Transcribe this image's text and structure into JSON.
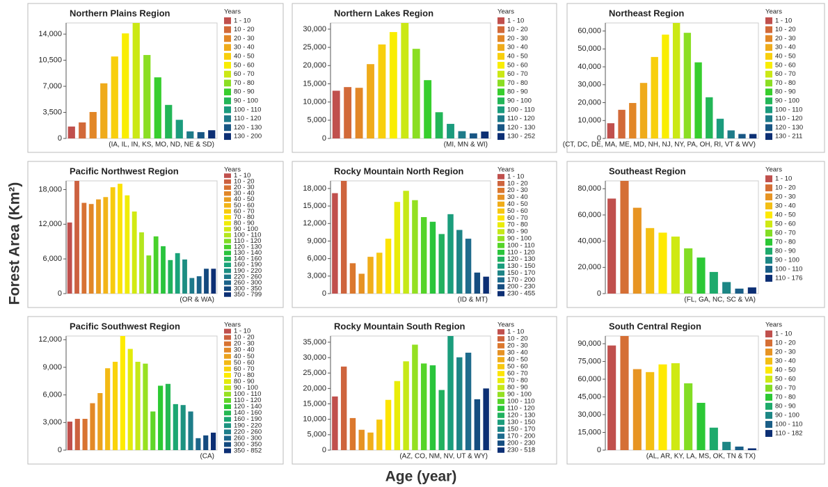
{
  "ylabel": "Forest Area (Km²)",
  "xlabel": "Age (year)",
  "color_scale": [
    "#c0504d",
    "#dd7a2c",
    "#f2b418",
    "#ffee00",
    "#b4e61e",
    "#2ecc2e",
    "#1aa37a",
    "#1f6f8e",
    "#0c2f74"
  ],
  "chart_data": [
    {
      "type": "bar",
      "title": "Northern Plains Region",
      "legend_title": "Years",
      "annotation": "(IA, IL, IN, KS, MO, ND, NE & SD)",
      "categories": [
        "1 - 10",
        "10 - 20",
        "20 - 30",
        "30 - 40",
        "40 - 50",
        "50 - 60",
        "60 - 70",
        "70 - 80",
        "80 - 90",
        "90 - 100",
        "100 - 110",
        "110 - 120",
        "120 - 130",
        "130 - 200"
      ],
      "values": [
        1600,
        2150,
        3550,
        7400,
        11000,
        14100,
        15500,
        11200,
        8200,
        4500,
        2500,
        950,
        850,
        1100
      ],
      "ylim": [
        0,
        15500
      ],
      "yticks": [
        0,
        {
          "value": 3500,
          "label": "3,500"
        },
        {
          "value": 7000,
          "label": "7,000"
        },
        {
          "value": 10500,
          "label": "10,500"
        },
        {
          "value": 14000,
          "label": "14,000"
        }
      ]
    },
    {
      "type": "bar",
      "title": "Northern Lakes Region",
      "legend_title": "Years",
      "annotation": "(MI, MN & WI)",
      "categories": [
        "1 - 10",
        "10 - 20",
        "20 - 30",
        "30 - 40",
        "40 - 50",
        "50 - 60",
        "60 - 70",
        "70 - 80",
        "80 - 90",
        "90 - 100",
        "100 - 110",
        "110 - 120",
        "120 - 130",
        "130 - 252"
      ],
      "values": [
        13100,
        14100,
        13900,
        20400,
        25800,
        29200,
        31700,
        24600,
        16000,
        7200,
        4000,
        2000,
        1400,
        1900
      ],
      "ylim": [
        0,
        31700
      ],
      "yticks": [
        0,
        {
          "value": 5000,
          "label": "5,000"
        },
        {
          "value": 10000,
          "label": "10,000"
        },
        {
          "value": 15000,
          "label": "15,000"
        },
        {
          "value": 20000,
          "label": "20,000"
        },
        {
          "value": 25000,
          "label": "25,000"
        },
        {
          "value": 30000,
          "label": "30,000"
        }
      ]
    },
    {
      "type": "bar",
      "title": "Northeast Region",
      "legend_title": "Years",
      "annotation": "(CT, DC, DE, MA, ME, MD, NH, NJ, NY, PA, OH, RI, VT & WV)",
      "categories": [
        "1 - 10",
        "10 - 20",
        "20 - 30",
        "30 - 40",
        "40 - 50",
        "50 - 60",
        "60 - 70",
        "70 - 80",
        "80 - 90",
        "90 - 100",
        "100 - 110",
        "110 - 120",
        "120 - 130",
        "130 - 211"
      ],
      "values": [
        8500,
        16000,
        19800,
        31000,
        45500,
        58000,
        64500,
        59000,
        42500,
        23000,
        11000,
        4500,
        2500,
        2500
      ],
      "ylim": [
        0,
        64500
      ],
      "yticks": [
        0,
        {
          "value": 10000,
          "label": "10,000"
        },
        {
          "value": 20000,
          "label": "20,000"
        },
        {
          "value": 30000,
          "label": "30,000"
        },
        {
          "value": 40000,
          "label": "40,000"
        },
        {
          "value": 50000,
          "label": "50,000"
        },
        {
          "value": 60000,
          "label": "60,000"
        }
      ]
    },
    {
      "type": "bar",
      "title": "Pacific Northwest Region",
      "legend_title": "Years",
      "annotation": "(OR & WA)",
      "categories": [
        "1 - 10",
        "10 - 20",
        "20 - 30",
        "30 - 40",
        "40 - 50",
        "50 - 60",
        "60 - 70",
        "70 - 80",
        "80 - 90",
        "90 - 100",
        "100 - 110",
        "110 - 120",
        "120 - 130",
        "130 - 140",
        "140 - 160",
        "160 - 190",
        "190 - 220",
        "220 - 260",
        "260 - 300",
        "300 - 350",
        "350 - 799"
      ],
      "values": [
        12300,
        19500,
        15700,
        15500,
        16300,
        16700,
        18400,
        19000,
        17000,
        14200,
        10600,
        6600,
        9900,
        8200,
        5800,
        7000,
        5900,
        2700,
        3000,
        4300,
        4300
      ],
      "ylim": [
        0,
        19500
      ],
      "yticks": [
        0,
        {
          "value": 6000,
          "label": "6,000"
        },
        {
          "value": 12000,
          "label": "12,000"
        },
        {
          "value": 18000,
          "label": "18,000"
        }
      ]
    },
    {
      "type": "bar",
      "title": "Rocky Mountain North Region",
      "legend_title": "Years",
      "annotation": "(ID & MT)",
      "categories": [
        "1 - 10",
        "10 - 20",
        "20 - 30",
        "30 - 40",
        "40 - 50",
        "50 - 60",
        "60 - 70",
        "70 - 80",
        "80 - 90",
        "90 - 100",
        "100 - 110",
        "110 - 120",
        "120 - 130",
        "130 - 150",
        "150 - 170",
        "170 - 200",
        "200 - 230",
        "230 - 455"
      ],
      "values": [
        17200,
        19300,
        5200,
        3400,
        6300,
        7000,
        9400,
        15700,
        17600,
        16000,
        13100,
        12300,
        10200,
        13600,
        10900,
        9400,
        3600,
        2900
      ],
      "ylim": [
        0,
        19300
      ],
      "yticks": [
        0,
        {
          "value": 3000,
          "label": "3,000"
        },
        {
          "value": 6000,
          "label": "6,000"
        },
        {
          "value": 9000,
          "label": "9,000"
        },
        {
          "value": 12000,
          "label": "12,000"
        },
        {
          "value": 15000,
          "label": "15,000"
        },
        {
          "value": 18000,
          "label": "18,000"
        }
      ]
    },
    {
      "type": "bar",
      "title": "Southeast Region",
      "legend_title": "Years",
      "annotation": "(FL, GA, NC, SC & VA)",
      "categories": [
        "1  - 10",
        "10 - 20",
        "20 - 30",
        "30 - 40",
        "40 - 50",
        "50 - 60",
        "60 - 70",
        "70 - 80",
        "80 - 90",
        "90 - 100",
        "100 - 110",
        "110 - 176"
      ],
      "values": [
        72500,
        86000,
        65500,
        50000,
        46500,
        43500,
        34500,
        27500,
        16500,
        8800,
        3800,
        4700
      ],
      "ylim": [
        0,
        86000
      ],
      "yticks": [
        0,
        {
          "value": 20000,
          "label": "20,000"
        },
        {
          "value": 40000,
          "label": "40,000"
        },
        {
          "value": 60000,
          "label": "60,000"
        },
        {
          "value": 80000,
          "label": "80,000"
        }
      ]
    },
    {
      "type": "bar",
      "title": "Pacific Southwest Region",
      "legend_title": "Years",
      "annotation": "(CA)",
      "categories": [
        "1 - 10",
        "10 - 20",
        "20 - 30",
        "30 - 40",
        "40 - 50",
        "50 - 60",
        "60 - 70",
        "70 - 80",
        "80 - 90",
        "90 - 100",
        "100 - 110",
        "110 - 120",
        "120 - 140",
        "140 - 160",
        "160 - 190",
        "190 - 220",
        "220 - 260",
        "260 - 300",
        "300 - 350",
        "350 - 852"
      ],
      "values": [
        3100,
        3400,
        3400,
        5100,
        6200,
        8900,
        9600,
        12400,
        11000,
        9600,
        9400,
        4200,
        7000,
        7200,
        5000,
        4900,
        4200,
        1300,
        1600,
        1900
      ],
      "ylim": [
        0,
        12400
      ],
      "yticks": [
        0,
        {
          "value": 3000,
          "label": "3,000"
        },
        {
          "value": 6000,
          "label": "6,000"
        },
        {
          "value": 9000,
          "label": "9,000"
        },
        {
          "value": 12000,
          "label": "12,000"
        }
      ]
    },
    {
      "type": "bar",
      "title": "Rocky Mountain South Region",
      "legend_title": "Years",
      "annotation": "(AZ, CO, NM, NV, UT & WY)",
      "categories": [
        "1 - 10",
        "10 - 20",
        "20 - 30",
        "30 - 40",
        "40 - 50",
        "50 - 60",
        "60 - 70",
        "70 - 80",
        "80 - 90",
        "90 - 100",
        "100 - 110",
        "110 - 120",
        "120 - 130",
        "130 - 150",
        "150 - 170",
        "170 - 200",
        "200 - 230",
        "230 - 518"
      ],
      "values": [
        17400,
        27100,
        10400,
        6600,
        5700,
        9900,
        16300,
        22400,
        28800,
        34200,
        28100,
        27500,
        19500,
        37000,
        30100,
        31600,
        16500,
        20000
      ],
      "ylim": [
        0,
        37000
      ],
      "yticks": [
        0,
        {
          "value": 5000,
          "label": "5,000"
        },
        {
          "value": 10000,
          "label": "10,000"
        },
        {
          "value": 15000,
          "label": "15,000"
        },
        {
          "value": 20000,
          "label": "20,000"
        },
        {
          "value": 25000,
          "label": "25,000"
        },
        {
          "value": 30000,
          "label": "30,000"
        },
        {
          "value": 35000,
          "label": "35,000"
        }
      ]
    },
    {
      "type": "bar",
      "title": "South Central Region",
      "legend_title": "Years",
      "annotation": "(AL, AR, KY, LA, MS, OK, TN & TX)",
      "categories": [
        "1 - 10",
        "10 - 20",
        "20 - 30",
        "30 - 40",
        "40 - 50",
        "50 - 60",
        "60 - 70",
        "70 - 80",
        "80 - 90",
        "90 - 100",
        "100 - 110",
        "110 - 182"
      ],
      "values": [
        88500,
        96500,
        68500,
        66000,
        72500,
        73500,
        56500,
        40000,
        19000,
        7000,
        3000,
        1500
      ],
      "ylim": [
        0,
        96500
      ],
      "yticks": [
        0,
        {
          "value": 15000,
          "label": "15,000"
        },
        {
          "value": 30000,
          "label": "30,000"
        },
        {
          "value": 45000,
          "label": "45,000"
        },
        {
          "value": 60000,
          "label": "60,000"
        },
        {
          "value": 75000,
          "label": "75,000"
        },
        {
          "value": 90000,
          "label": "90,000"
        }
      ]
    }
  ]
}
